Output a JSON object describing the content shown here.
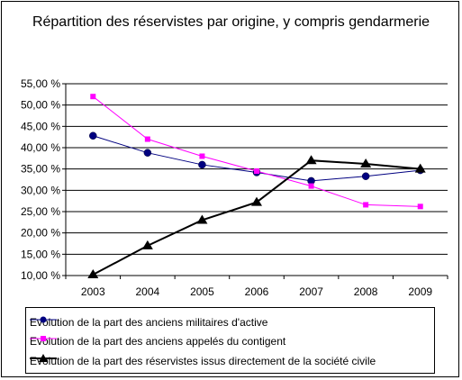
{
  "chart_data": {
    "type": "line",
    "title": "Répartition des réservistes par origine, y compris gendarmerie",
    "categories": [
      "2003",
      "2004",
      "2005",
      "2006",
      "2007",
      "2008",
      "2009"
    ],
    "y_ticks": [
      "10,00 %",
      "15,00 %",
      "20,00 %",
      "25,00 %",
      "30,00 %",
      "35,00 %",
      "40,00 %",
      "45,00 %",
      "50,00 %",
      "55,00 %"
    ],
    "ylim": [
      10,
      55
    ],
    "grid": "horizontal",
    "legend_position": "bottom",
    "series": [
      {
        "name": "Evolution de la part des anciens militaires d'active",
        "color": "#000080",
        "marker": "circle",
        "values": [
          42.8,
          38.8,
          36.0,
          34.2,
          32.2,
          33.3,
          34.7
        ]
      },
      {
        "name": "Evolution de la part des anciens appelés du contigent",
        "color": "#ff00ff",
        "marker": "square",
        "values": [
          52.0,
          42.0,
          38.0,
          34.5,
          31.0,
          26.6,
          26.2
        ]
      },
      {
        "name": "Evolution de la part des réservistes issus directement de la société civile",
        "color": "#000000",
        "marker": "triangle",
        "values": [
          10.2,
          17.0,
          23.0,
          27.2,
          37.0,
          36.2,
          35.0
        ]
      }
    ]
  }
}
